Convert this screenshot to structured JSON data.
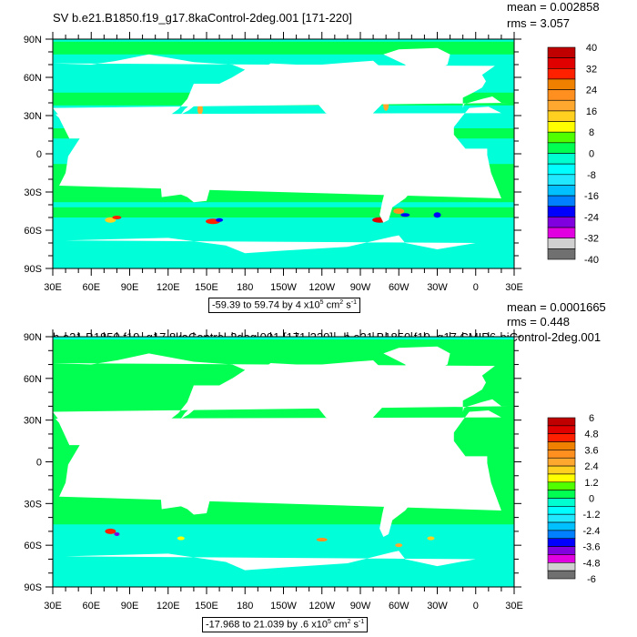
{
  "axes": {
    "lat_labels": [
      "90N",
      "60N",
      "30N",
      "0",
      "30S",
      "60S",
      "90S"
    ],
    "lon_labels": [
      "30E",
      "60E",
      "90E",
      "120E",
      "150E",
      "180",
      "150W",
      "120W",
      "90W",
      "60W",
      "30W",
      "0",
      "30E"
    ]
  },
  "colors": {
    "ocean_low": "#00ffd8",
    "ocean_mid": "#00ff50",
    "land": "#ffffff",
    "palette": [
      "#c00000",
      "#e00000",
      "#ff2000",
      "#f08000",
      "#ff9020",
      "#ffa830",
      "#ffd020",
      "#ffff00",
      "#50ff00",
      "#00ff50",
      "#00ffd0",
      "#00ffff",
      "#20e8ff",
      "#00c0ff",
      "#0080ff",
      "#0000ff",
      "#8000e0",
      "#e000e0",
      "#d0d0d0",
      "#707070"
    ]
  },
  "plots": [
    {
      "title": "SV b.e21.B1850.f19_g17.8kaControl-2deg.001 [171-220]",
      "mean": "mean = 0.002858",
      "rms": "rms = 3.057",
      "colorbar_labels": [
        "40",
        "32",
        "24",
        "16",
        "8",
        "0",
        "-8",
        "-16",
        "-24",
        "-32",
        "-40"
      ],
      "range_text": "-59.39 to 59.74 by 4 x10",
      "range_exp": "5",
      "range_unit1": " cm",
      "range_unit1_exp": "2",
      "range_unit2": " s",
      "range_unit2_exp": "-1"
    },
    {
      "title": "b.e21.B1850.f19_g17.8kaControl-2deg.001 [171-220] - b.e21.B1850.f19_g17.CMIP6-piControl-2deg.001",
      "mean": "mean = 0.0001665",
      "rms": "rms = 0.448",
      "colorbar_labels": [
        "6",
        "4.8",
        "3.6",
        "2.4",
        "1.2",
        "0",
        "-1.2",
        "-2.4",
        "-3.6",
        "-4.8",
        "-6"
      ],
      "range_text": "-17.968 to 21.039 by .6 x10",
      "range_exp": "5",
      "range_unit1": " cm",
      "range_unit1_exp": "2",
      "range_unit2": " s",
      "range_unit2_exp": "-1"
    }
  ]
}
